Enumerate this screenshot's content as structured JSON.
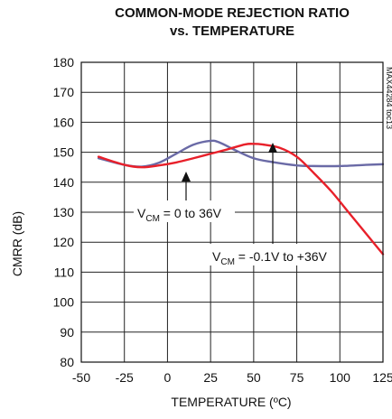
{
  "chart_data": {
    "type": "line",
    "title_line1": "COMMON-MODE REJECTION RATIO",
    "title_line2": "vs. TEMPERATURE",
    "xlabel": "TEMPERATURE (ºC)",
    "ylabel": "CMRR (dB)",
    "side_label": "MAX44284 toc13",
    "xlim": [
      -50,
      125
    ],
    "ylim": [
      80,
      180
    ],
    "x_ticks": [
      "-50",
      "-25",
      "0",
      "25",
      "50",
      "75",
      "100",
      "125"
    ],
    "y_ticks": [
      "80",
      "90",
      "100",
      "110",
      "120",
      "130",
      "140",
      "150",
      "160",
      "170",
      "180"
    ],
    "grid": true,
    "series": [
      {
        "name": "VCM = 0 to 36V",
        "label_main": "V",
        "label_sub": "CM",
        "label_rest": " = 0 to 36V",
        "color": "#6a6aa6",
        "x": [
          -40,
          -25,
          -15,
          -5,
          5,
          15,
          25,
          30,
          40,
          50,
          60,
          75,
          85,
          100,
          115,
          125
        ],
        "y": [
          148.0,
          145.8,
          145.2,
          146.5,
          149.5,
          152.5,
          153.8,
          153.3,
          150.5,
          148.0,
          146.8,
          145.6,
          145.4,
          145.4,
          145.8,
          146.0
        ]
      },
      {
        "name": "VCM = -0.1V to +36V",
        "label_main": "V",
        "label_sub": "CM",
        "label_rest": " = -0.1V to +36V",
        "color": "#e8202a",
        "x": [
          -40,
          -25,
          -15,
          -5,
          5,
          15,
          25,
          35,
          45,
          50,
          55,
          65,
          75,
          85,
          95,
          105,
          115,
          125
        ],
        "y": [
          148.5,
          145.8,
          145.0,
          145.6,
          146.6,
          148.0,
          149.5,
          151.0,
          152.6,
          152.8,
          152.6,
          151.5,
          148.5,
          143.0,
          137.0,
          130.0,
          123.0,
          116.0
        ]
      }
    ]
  }
}
